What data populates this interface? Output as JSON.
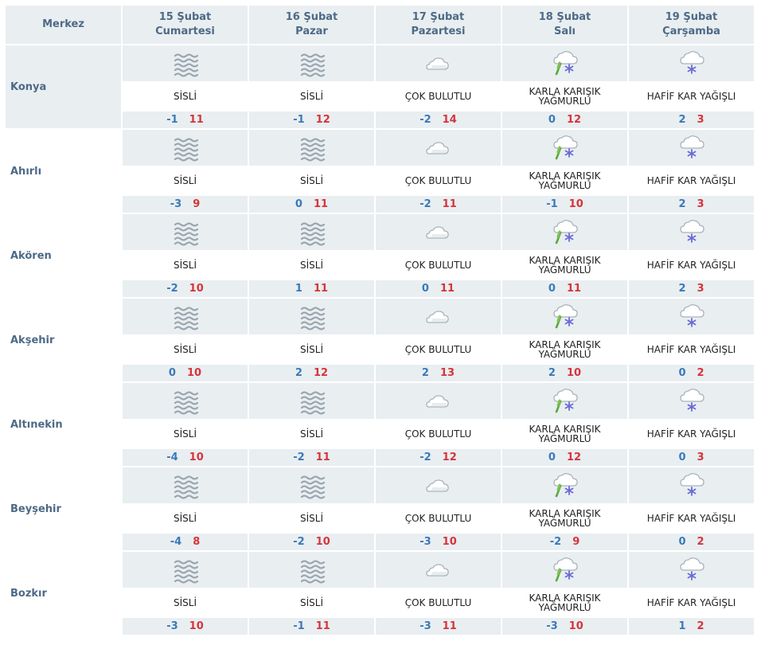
{
  "header": {
    "merkez": "Merkez",
    "days": [
      {
        "date": "15 Şubat",
        "weekday": "Cumartesi"
      },
      {
        "date": "16 Şubat",
        "weekday": "Pazar"
      },
      {
        "date": "17 Şubat",
        "weekday": "Pazartesi"
      },
      {
        "date": "18 Şubat",
        "weekday": "Salı"
      },
      {
        "date": "19 Şubat",
        "weekday": "Çarşamba"
      }
    ]
  },
  "colors": {
    "header_bg": "#e9eef1",
    "header_text": "#4d6a86",
    "min_temp": "#3a7ab8",
    "max_temp": "#d6343a"
  },
  "cities": [
    {
      "name": "Konya",
      "days": [
        {
          "icon": "fog-icon",
          "desc": "SİSLİ",
          "min": "-1",
          "max": "11"
        },
        {
          "icon": "fog-icon",
          "desc": "SİSLİ",
          "min": "-1",
          "max": "12"
        },
        {
          "icon": "cloudy-icon",
          "desc": "ÇOK BULUTLU",
          "min": "-2",
          "max": "14"
        },
        {
          "icon": "sleet-icon",
          "desc": "KARLA KARIŞIK YAĞMURLU",
          "min": "0",
          "max": "12"
        },
        {
          "icon": "light-snow-icon",
          "desc": "HAFİF KAR YAĞIŞLI",
          "min": "2",
          "max": "3"
        }
      ]
    },
    {
      "name": "Ahırlı",
      "days": [
        {
          "icon": "fog-icon",
          "desc": "SİSLİ",
          "min": "-3",
          "max": "9"
        },
        {
          "icon": "fog-icon",
          "desc": "SİSLİ",
          "min": "0",
          "max": "11"
        },
        {
          "icon": "cloudy-icon",
          "desc": "ÇOK BULUTLU",
          "min": "-2",
          "max": "11"
        },
        {
          "icon": "sleet-icon",
          "desc": "KARLA KARIŞIK YAĞMURLU",
          "min": "-1",
          "max": "10"
        },
        {
          "icon": "light-snow-icon",
          "desc": "HAFİF KAR YAĞIŞLI",
          "min": "2",
          "max": "3"
        }
      ]
    },
    {
      "name": "Akören",
      "days": [
        {
          "icon": "fog-icon",
          "desc": "SİSLİ",
          "min": "-2",
          "max": "10"
        },
        {
          "icon": "fog-icon",
          "desc": "SİSLİ",
          "min": "1",
          "max": "11"
        },
        {
          "icon": "cloudy-icon",
          "desc": "ÇOK BULUTLU",
          "min": "0",
          "max": "11"
        },
        {
          "icon": "sleet-icon",
          "desc": "KARLA KARIŞIK YAĞMURLU",
          "min": "0",
          "max": "11"
        },
        {
          "icon": "light-snow-icon",
          "desc": "HAFİF KAR YAĞIŞLI",
          "min": "2",
          "max": "3"
        }
      ]
    },
    {
      "name": "Akşehir",
      "days": [
        {
          "icon": "fog-icon",
          "desc": "SİSLİ",
          "min": "0",
          "max": "10"
        },
        {
          "icon": "fog-icon",
          "desc": "SİSLİ",
          "min": "2",
          "max": "12"
        },
        {
          "icon": "cloudy-icon",
          "desc": "ÇOK BULUTLU",
          "min": "2",
          "max": "13"
        },
        {
          "icon": "sleet-icon",
          "desc": "KARLA KARIŞIK YAĞMURLU",
          "min": "2",
          "max": "10"
        },
        {
          "icon": "light-snow-icon",
          "desc": "HAFİF KAR YAĞIŞLI",
          "min": "0",
          "max": "2"
        }
      ]
    },
    {
      "name": "Altınekin",
      "days": [
        {
          "icon": "fog-icon",
          "desc": "SİSLİ",
          "min": "-4",
          "max": "10"
        },
        {
          "icon": "fog-icon",
          "desc": "SİSLİ",
          "min": "-2",
          "max": "11"
        },
        {
          "icon": "cloudy-icon",
          "desc": "ÇOK BULUTLU",
          "min": "-2",
          "max": "12"
        },
        {
          "icon": "sleet-icon",
          "desc": "KARLA KARIŞIK YAĞMURLU",
          "min": "0",
          "max": "12"
        },
        {
          "icon": "light-snow-icon",
          "desc": "HAFİF KAR YAĞIŞLI",
          "min": "0",
          "max": "3"
        }
      ]
    },
    {
      "name": "Beyşehir",
      "days": [
        {
          "icon": "fog-icon",
          "desc": "SİSLİ",
          "min": "-4",
          "max": "8"
        },
        {
          "icon": "fog-icon",
          "desc": "SİSLİ",
          "min": "-2",
          "max": "10"
        },
        {
          "icon": "cloudy-icon",
          "desc": "ÇOK BULUTLU",
          "min": "-3",
          "max": "10"
        },
        {
          "icon": "sleet-icon",
          "desc": "KARLA KARIŞIK YAĞMURLU",
          "min": "-2",
          "max": "9"
        },
        {
          "icon": "light-snow-icon",
          "desc": "HAFİF KAR YAĞIŞLI",
          "min": "0",
          "max": "2"
        }
      ]
    },
    {
      "name": "Bozkır",
      "days": [
        {
          "icon": "fog-icon",
          "desc": "SİSLİ",
          "min": "-3",
          "max": "10"
        },
        {
          "icon": "fog-icon",
          "desc": "SİSLİ",
          "min": "-1",
          "max": "11"
        },
        {
          "icon": "cloudy-icon",
          "desc": "ÇOK BULUTLU",
          "min": "-3",
          "max": "11"
        },
        {
          "icon": "sleet-icon",
          "desc": "KARLA KARIŞIK YAĞMURLU",
          "min": "-3",
          "max": "10"
        },
        {
          "icon": "light-snow-icon",
          "desc": "HAFİF KAR YAĞIŞLI",
          "min": "1",
          "max": "2"
        }
      ]
    }
  ]
}
